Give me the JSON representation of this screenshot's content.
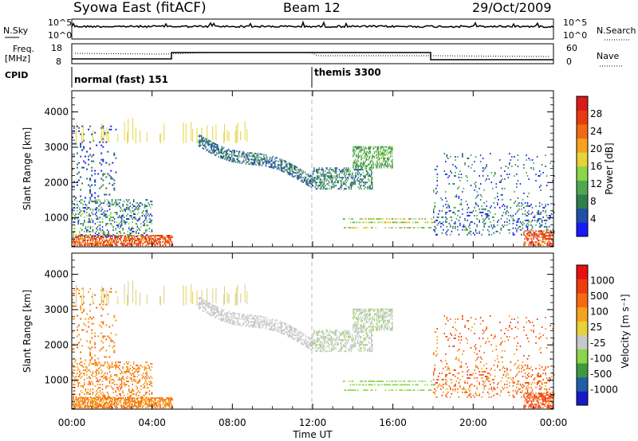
{
  "header": {
    "title": "Syowa East (fitACF)",
    "beam": "Beam 12",
    "date": "29/Oct/2009"
  },
  "summary_panels": {
    "nsky_label": "N.Sky",
    "nsearch_label": "N.Search",
    "left_top": "10^5",
    "left_bottom": "10^0",
    "right_top": "10^5",
    "right_bottom": "10^0",
    "freq_label_1": "Freq.",
    "freq_label_2": "[MHz]",
    "freq_top": "18",
    "freq_bottom": "8",
    "nave_label": "Nave",
    "nave_top": "60",
    "nave_bottom": "0",
    "cpid_label": "CPID",
    "cpid_1": "normal (fast) 151",
    "cpid_2": "themis 3300"
  },
  "colors": {
    "power_scale": [
      "#1919ff",
      "#1f4fa8",
      "#2f7f4a",
      "#4fa84f",
      "#8ad54a",
      "#e8d23a",
      "#f5a21f",
      "#f06a12",
      "#e83a10",
      "#d81a1a"
    ],
    "velocity_scale": [
      "#e81010",
      "#f03a10",
      "#f56a10",
      "#f5a21f",
      "#e8d23a",
      "#c8c8c8",
      "#8ad54a",
      "#3f9a3f",
      "#1f5fa8",
      "#1919c8"
    ]
  },
  "chart_data": [
    {
      "type": "heatmap",
      "name": "power",
      "xlabel": "",
      "ylabel": "Slant Range [km]",
      "ylim": [
        180,
        4600
      ],
      "yticks": [
        "1000",
        "2000",
        "3000",
        "4000"
      ],
      "colorbar_label": "Power [dB]",
      "colorbar_ticks": [
        "4",
        "8",
        "12",
        "16",
        "20",
        "24",
        "28"
      ],
      "colorbar_range": [
        0,
        32
      ]
    },
    {
      "type": "heatmap",
      "name": "velocity",
      "xlabel": "Time UT",
      "ylabel": "Slant Range [km]",
      "ylim": [
        180,
        4600
      ],
      "yticks": [
        "1000",
        "2000",
        "3000",
        "4000"
      ],
      "xticks": [
        "00:00",
        "04:00",
        "08:00",
        "12:00",
        "16:00",
        "20:00",
        "00:00"
      ],
      "colorbar_label": "Velocity [m s⁻¹]",
      "colorbar_ticks": [
        "1000",
        "500",
        "100",
        "25",
        "-25",
        "-100",
        "-500",
        "-1000"
      ]
    }
  ]
}
